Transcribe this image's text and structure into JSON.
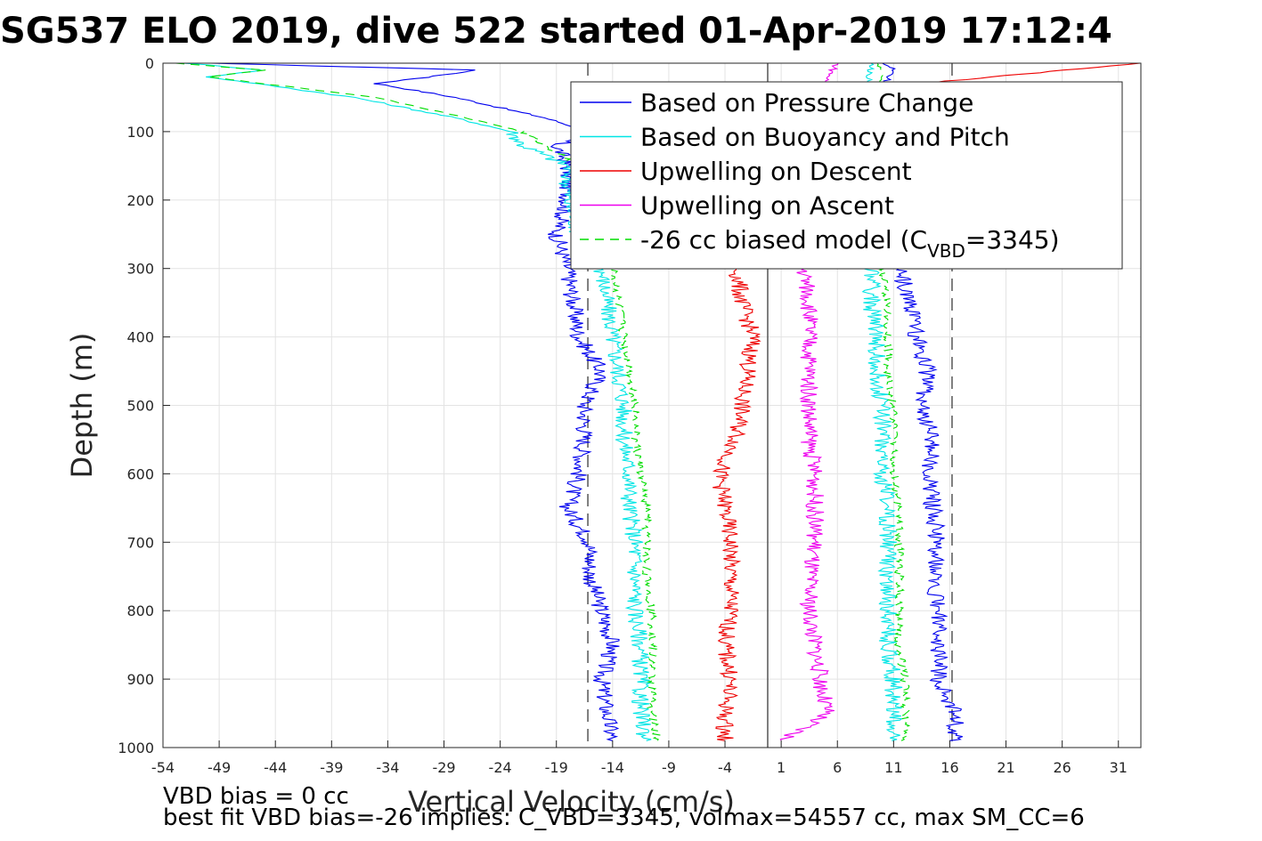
{
  "chart_data": {
    "type": "line",
    "title": "SG537 ELO 2019, dive 522 started 01-Apr-2019 17:12:4",
    "xlabel": "Vertical Velocity (cm/s)",
    "ylabel": "Depth (m)",
    "xlim": [
      -54,
      33
    ],
    "ylim": [
      1000,
      0
    ],
    "y_reversed": true,
    "grid": true,
    "legend_placement": "top-right",
    "x_ticks": [
      "-54",
      "-49",
      "-44",
      "-39",
      "-34",
      "-29",
      "-24",
      "-19",
      "-14",
      "-9",
      "-4",
      "1",
      "6",
      "11",
      "16",
      "21",
      "26",
      "31"
    ],
    "y_ticks": [
      "0",
      "100",
      "200",
      "300",
      "400",
      "500",
      "600",
      "700",
      "800",
      "900",
      "1000"
    ],
    "vertical_reference_lines": [
      {
        "x": -16.2,
        "style": "dashed",
        "color": "#555555"
      },
      {
        "x": 16.2,
        "style": "dashed",
        "color": "#555555"
      },
      {
        "x": -0.2,
        "style": "solid",
        "color": "#555555"
      }
    ],
    "series": [
      {
        "name": "Based on Pressure Change",
        "color": "#0000ee",
        "style": "solid",
        "descent": {
          "depth": [
            0,
            10,
            15,
            30,
            50,
            80,
            100,
            120,
            150,
            200,
            250,
            300,
            350,
            400,
            450,
            500,
            550,
            600,
            650,
            700,
            750,
            800,
            850,
            900,
            950,
            990
          ],
          "velocity": [
            -50,
            -26,
            -28,
            -35,
            -28,
            -20,
            -16,
            -19,
            -18,
            -18,
            -19,
            -18,
            -17.5,
            -17,
            -15,
            -16.5,
            -16.5,
            -17,
            -18,
            -16,
            -16,
            -15,
            -14,
            -15,
            -14.5,
            -14
          ]
        },
        "ascent": {
          "depth": [
            990,
            950,
            900,
            850,
            800,
            750,
            700,
            650,
            600,
            550,
            500,
            450,
            400,
            350,
            300,
            250,
            200,
            150,
            100,
            50,
            10,
            0
          ],
          "velocity": [
            16.5,
            16.5,
            15,
            15,
            15,
            14.5,
            15,
            14.5,
            14,
            14.5,
            13.5,
            14,
            13,
            12.5,
            11.5,
            11,
            10.5,
            10.5,
            10,
            9.5,
            11,
            10
          ]
        }
      },
      {
        "name": "Based on Buoyancy and Pitch",
        "color": "#00e5e5",
        "style": "solid",
        "descent": {
          "depth": [
            0,
            10,
            20,
            50,
            80,
            100,
            120,
            150,
            200,
            250,
            300,
            350,
            400,
            450,
            500,
            550,
            600,
            650,
            700,
            750,
            800,
            850,
            900,
            950,
            990
          ],
          "velocity": [
            -52,
            -45,
            -50,
            -37,
            -28,
            -23,
            -22,
            -18,
            -18,
            -17,
            -15,
            -14.5,
            -14,
            -13.5,
            -13,
            -13,
            -12.5,
            -12.5,
            -12,
            -12,
            -12,
            -11.5,
            -11.5,
            -11.5,
            -11
          ]
        },
        "ascent": {
          "depth": [
            990,
            950,
            900,
            850,
            800,
            750,
            700,
            650,
            600,
            550,
            500,
            450,
            400,
            350,
            300,
            250,
            200,
            150,
            100,
            50,
            10,
            0
          ],
          "velocity": [
            11,
            11,
            11,
            10.5,
            10.5,
            10.5,
            10.5,
            10.5,
            10,
            10,
            10,
            9.5,
            9.5,
            9,
            9,
            9,
            9,
            8.5,
            8.5,
            8.5,
            9,
            9
          ]
        }
      },
      {
        "name": "Upwelling on Descent",
        "color": "#ee0000",
        "style": "solid",
        "depth": [
          0,
          50,
          100,
          150,
          200,
          250,
          300,
          350,
          400,
          450,
          500,
          550,
          600,
          650,
          700,
          750,
          800,
          850,
          900,
          950,
          990
        ],
        "velocity": [
          33,
          0,
          -1,
          -2,
          -2,
          -2.5,
          -3,
          -2.5,
          -1.5,
          -2,
          -2.5,
          -3,
          -4.5,
          -4,
          -3.5,
          -3.5,
          -3.5,
          -4,
          -3.5,
          -4,
          -4
        ]
      },
      {
        "name": "Upwelling on Ascent",
        "color": "#ee00ee",
        "style": "solid",
        "depth": [
          0,
          50,
          100,
          150,
          200,
          250,
          300,
          350,
          400,
          450,
          500,
          550,
          600,
          650,
          700,
          750,
          800,
          850,
          900,
          950,
          990
        ],
        "velocity": [
          6,
          4,
          3,
          3,
          3,
          3,
          3,
          3.5,
          3.5,
          3.5,
          3.5,
          3.5,
          4,
          4,
          4,
          3.5,
          3.5,
          4,
          4.5,
          5,
          1
        ]
      },
      {
        "name": "-26 cc biased model (C_VBD=3345)",
        "legend_label": "-26 cc biased model (C",
        "legend_subscript": "VBD",
        "legend_suffix": "=3345)",
        "color": "#00dd00",
        "style": "dashed",
        "descent": {
          "depth": [
            0,
            10,
            20,
            50,
            80,
            100,
            120,
            150,
            200,
            250,
            300,
            350,
            400,
            450,
            500,
            550,
            600,
            650,
            700,
            750,
            800,
            850,
            900,
            950,
            990
          ],
          "velocity": [
            -53,
            -45,
            -50,
            -35,
            -27,
            -22,
            -20,
            -17,
            -16,
            -16,
            -14,
            -13.5,
            -13,
            -12.5,
            -12,
            -12,
            -11.5,
            -11,
            -11,
            -11,
            -10.5,
            -10.5,
            -10.5,
            -10.5,
            -10
          ]
        },
        "ascent": {
          "depth": [
            990,
            950,
            900,
            850,
            800,
            750,
            700,
            650,
            600,
            550,
            500,
            450,
            400,
            350,
            300,
            250,
            200,
            150,
            100,
            50,
            10,
            0
          ],
          "velocity": [
            12,
            12,
            12,
            11.5,
            11.5,
            11.5,
            11.5,
            11.5,
            11,
            11,
            11,
            10.5,
            10.5,
            10.5,
            10,
            10,
            10,
            9.5,
            9.5,
            9.5,
            10,
            9.5
          ]
        }
      }
    ]
  },
  "footer": {
    "line1": "VBD bias = 0 cc",
    "line2": "best fit VBD bias=-26 implies: C_VBD=3345, volmax=54557 cc, max SM_CC=6"
  }
}
